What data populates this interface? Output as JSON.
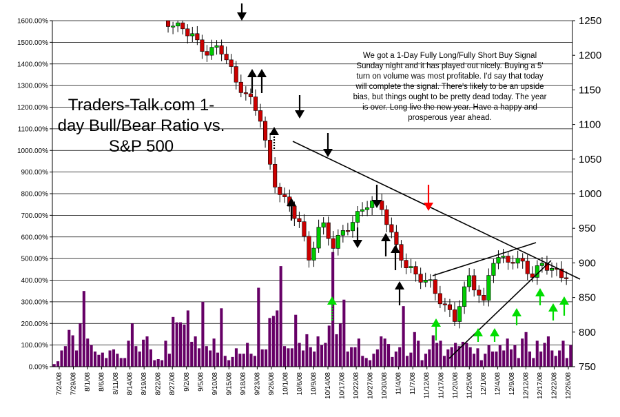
{
  "chart_data": {
    "type": "bar+candlestick",
    "title": "Traders-Talk.com 1-day Bull/Bear Ratio vs. S&P 500",
    "annotation": "We got a 1-Day Fully Long/Fully Short Buy Signal Sunday night and it has played out nicely. Buying a 5' turn on volume was most profitable. I'd say that today will complete the signal. There's likely to be an upside bias, but things ought to be pretty dead today. The year is over. Long live the new year. Have a happy and prosperous year ahead.",
    "left_axis": {
      "name": "1-day Bull/Bear Ratio",
      "ylim": [
        0,
        1600
      ],
      "ticks": [
        "0.00%",
        "100.00%",
        "200.00%",
        "300.00%",
        "400.00%",
        "500.00%",
        "600.00%",
        "700.00%",
        "800.00%",
        "900.00%",
        "1000.00%",
        "1100.00%",
        "1200.00%",
        "1300.00%",
        "1400.00%",
        "1500.00%",
        "1600.00%"
      ]
    },
    "right_axis": {
      "name": "S&P 500",
      "ylim": [
        750,
        1250
      ],
      "ticks": [
        "750",
        "800",
        "850",
        "900",
        "950",
        "1000",
        "1050",
        "1100",
        "1150",
        "1200",
        "1250"
      ]
    },
    "x_tick_labels": [
      "7/24/08",
      "7/29/08",
      "8/1/08",
      "8/6/08",
      "8/11/08",
      "8/14/08",
      "8/19/08",
      "8/22/08",
      "8/27/08",
      "9/2/08",
      "9/5/08",
      "9/10/08",
      "9/15/08",
      "9/18/08",
      "9/23/08",
      "9/26/08",
      "10/1/08",
      "10/6/08",
      "10/9/08",
      "10/14/08",
      "10/17/08",
      "10/22/08",
      "10/27/08",
      "10/30/08",
      "11/4/08",
      "11/7/08",
      "11/12/08",
      "11/17/08",
      "11/20/08",
      "11/25/08",
      "12/1/08",
      "12/4/08",
      "12/9/08",
      "12/12/08",
      "12/17/08",
      "12/22/08",
      "12/26/08"
    ],
    "ratio_bars": [
      12,
      25,
      75,
      95,
      170,
      145,
      75,
      200,
      350,
      130,
      100,
      70,
      55,
      65,
      40,
      75,
      80,
      60,
      40,
      40,
      120,
      200,
      95,
      70,
      125,
      140,
      80,
      30,
      35,
      30,
      120,
      60,
      230,
      205,
      205,
      195,
      260,
      115,
      140,
      85,
      300,
      95,
      75,
      130,
      65,
      270,
      50,
      30,
      45,
      85,
      60,
      60,
      110,
      60,
      50,
      365,
      80,
      80,
      225,
      235,
      260,
      465,
      95,
      85,
      85,
      240,
      110,
      75,
      150,
      90,
      70,
      140,
      100,
      110,
      190,
      530,
      150,
      200,
      310,
      70,
      90,
      90,
      130,
      50,
      40,
      30,
      60,
      80,
      140,
      130,
      105,
      45,
      70,
      90,
      280,
      50,
      65,
      160,
      120,
      30,
      60,
      80,
      145,
      110,
      120,
      50,
      80,
      90,
      110,
      95,
      115,
      110,
      90,
      60,
      85,
      30,
      60,
      100,
      70,
      70,
      100,
      75,
      130,
      80,
      100,
      40,
      130,
      160,
      70,
      40,
      120,
      70,
      110,
      140,
      75,
      50,
      75,
      120,
      40,
      100
    ]
  },
  "markers": {
    "black_down_count": 5,
    "black_up_count": 8,
    "red_down_count": 1,
    "green_up_count": 9
  }
}
